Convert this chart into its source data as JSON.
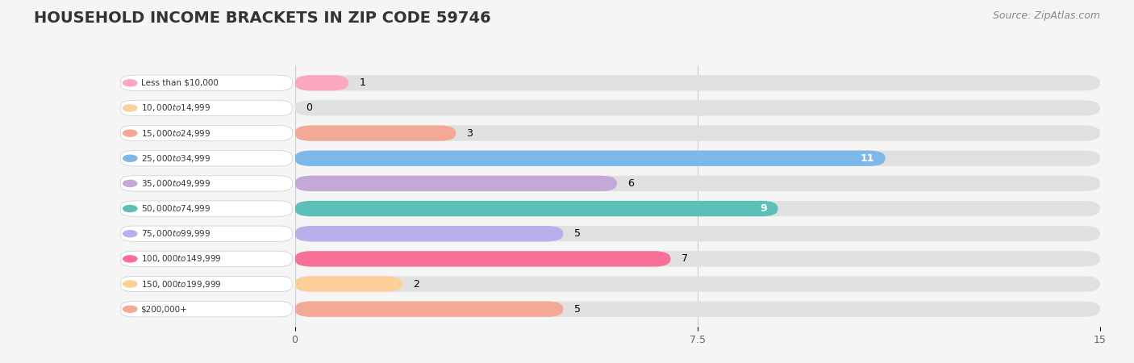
{
  "title": "HOUSEHOLD INCOME BRACKETS IN ZIP CODE 59746",
  "source": "Source: ZipAtlas.com",
  "categories": [
    "Less than $10,000",
    "$10,000 to $14,999",
    "$15,000 to $24,999",
    "$25,000 to $34,999",
    "$35,000 to $49,999",
    "$50,000 to $74,999",
    "$75,000 to $99,999",
    "$100,000 to $149,999",
    "$150,000 to $199,999",
    "$200,000+"
  ],
  "values": [
    1,
    0,
    3,
    11,
    6,
    9,
    5,
    7,
    2,
    5
  ],
  "bar_colors": [
    "#F9A8C0",
    "#FCCF9A",
    "#F4A896",
    "#7EB8E8",
    "#C4A8D8",
    "#5DC0B8",
    "#B8B0E8",
    "#F87098",
    "#FCCF9A",
    "#F4A896"
  ],
  "xlim": [
    0,
    15
  ],
  "xticks": [
    0,
    7.5,
    15
  ],
  "background_color": "#f5f5f5",
  "bar_bg_color": "#e0e0e0",
  "title_fontsize": 14,
  "source_fontsize": 9
}
